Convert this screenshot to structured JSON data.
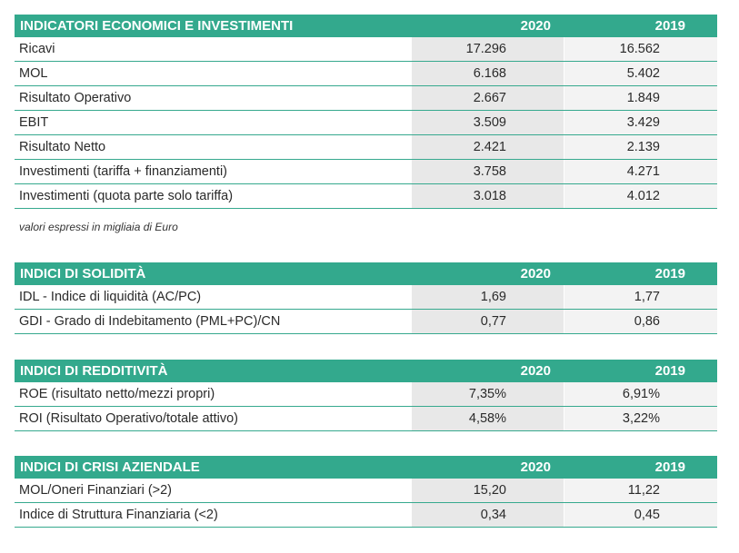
{
  "tables": [
    {
      "title": "INDICATORI ECONOMICI E INVESTIMENTI",
      "y1": "2020",
      "y2": "2019",
      "rows": [
        {
          "label": "Ricavi",
          "v1": "17.296",
          "v2": "16.562"
        },
        {
          "label": "MOL",
          "v1": "6.168",
          "v2": "5.402"
        },
        {
          "label": "Risultato Operativo",
          "v1": "2.667",
          "v2": "1.849"
        },
        {
          "label": "EBIT",
          "v1": "3.509",
          "v2": "3.429"
        },
        {
          "label": "Risultato Netto",
          "v1": "2.421",
          "v2": "2.139"
        },
        {
          "label": "Investimenti (tariffa + finanziamenti)",
          "v1": "3.758",
          "v2": "4.271"
        },
        {
          "label": "Investimenti (quota parte solo tariffa)",
          "v1": "3.018",
          "v2": "4.012"
        }
      ]
    },
    {
      "title": "INDICI DI SOLIDITÀ",
      "y1": "2020",
      "y2": "2019",
      "rows": [
        {
          "label": "IDL - Indice di liquidità (AC/PC)",
          "v1": "1,69",
          "v2": "1,77"
        },
        {
          "label": "GDI - Grado di Indebitamento (PML+PC)/CN",
          "v1": "0,77",
          "v2": "0,86"
        }
      ]
    },
    {
      "title": "INDICI DI REDDITIVITÀ",
      "y1": "2020",
      "y2": "2019",
      "rows": [
        {
          "label": "ROE (risultato netto/mezzi propri)",
          "v1": "7,35%",
          "v2": "6,91%"
        },
        {
          "label": "ROI (Risultato Operativo/totale attivo)",
          "v1": "4,58%",
          "v2": "3,22%"
        }
      ]
    },
    {
      "title": "INDICI DI CRISI AZIENDALE",
      "y1": "2020",
      "y2": "2019",
      "rows": [
        {
          "label": "MOL/Oneri Finanziari (>2)",
          "v1": "15,20",
          "v2": "11,22"
        },
        {
          "label": "Indice di Struttura Finanziaria (<2)",
          "v1": "0,34",
          "v2": "0,45"
        }
      ]
    }
  ],
  "note": "valori espressi in migliaia di Euro"
}
